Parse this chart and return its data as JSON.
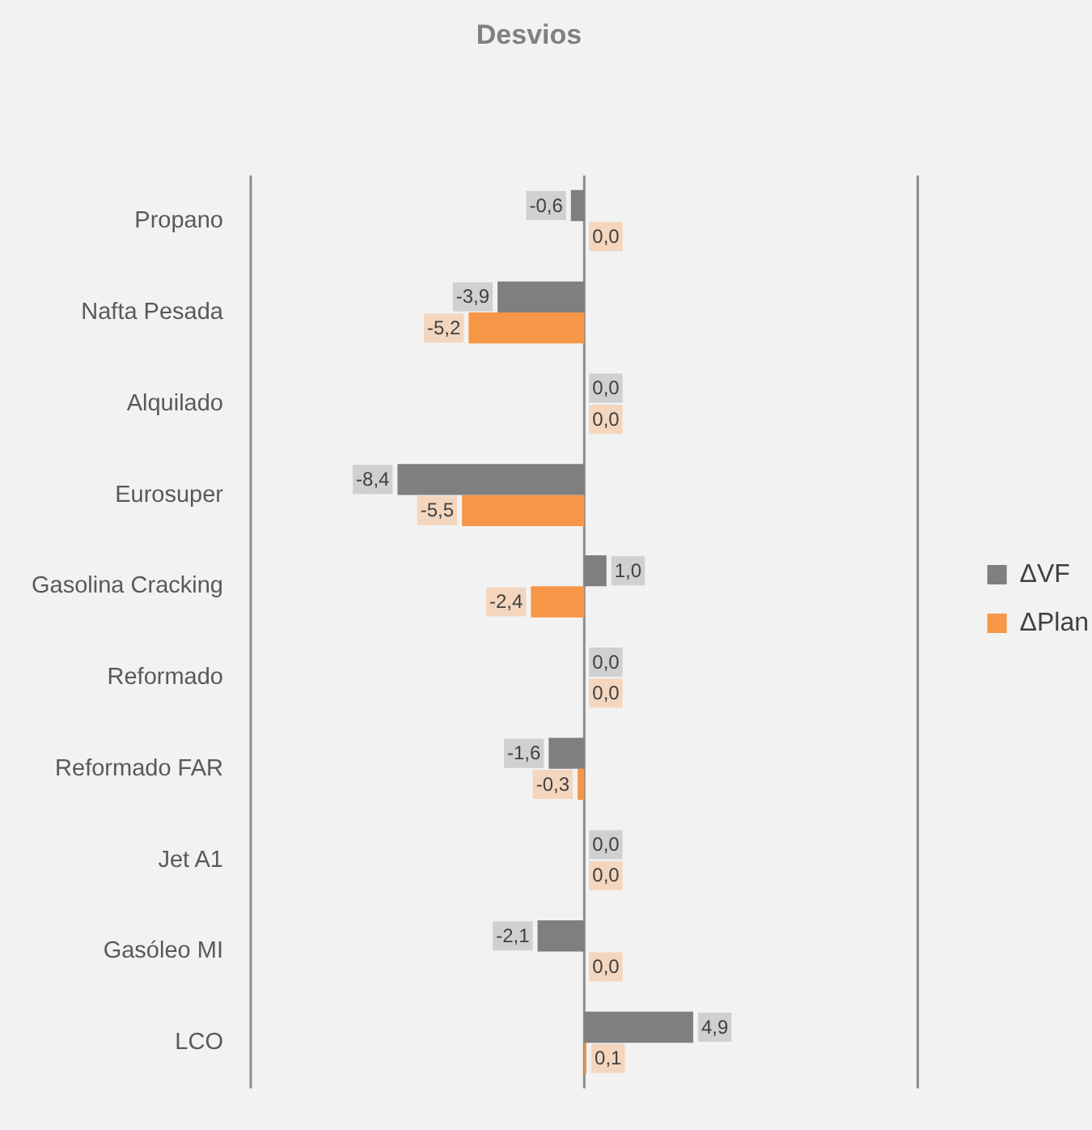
{
  "chart_data": {
    "type": "bar",
    "title": "Desvios",
    "orientation": "horizontal",
    "categories": [
      "Propano",
      "Nafta Pesada",
      "Alquilado",
      "Eurosuper",
      "Gasolina Cracking",
      "Reformado",
      "Reformado FAR",
      "Jet A1",
      "Gasóleo MI",
      "LCO"
    ],
    "series": [
      {
        "name": "ΔVF",
        "color": "#7f7f7f",
        "values": [
          -0.6,
          -3.9,
          0.0,
          -8.4,
          1.0,
          0.0,
          -1.6,
          0.0,
          -2.1,
          4.9
        ],
        "value_labels": [
          "-0,6",
          "-3,9",
          "0,0",
          "-8,4",
          "1,0",
          "0,0",
          "-1,6",
          "0,0",
          "-2,1",
          "4,9"
        ]
      },
      {
        "name": "ΔPlan",
        "color": "#f79646",
        "values": [
          0.0,
          -5.2,
          0.0,
          -5.5,
          -2.4,
          0.0,
          -0.3,
          0.0,
          0.0,
          0.1
        ],
        "value_labels": [
          "0,0",
          "-5,2",
          "0,0",
          "-5,5",
          "-2,4",
          "0,0",
          "-0,3",
          "0,0",
          "0,0",
          "0,1"
        ]
      }
    ],
    "xlim": [
      -15,
      15
    ],
    "legend": "right",
    "tick_labels": "y"
  }
}
